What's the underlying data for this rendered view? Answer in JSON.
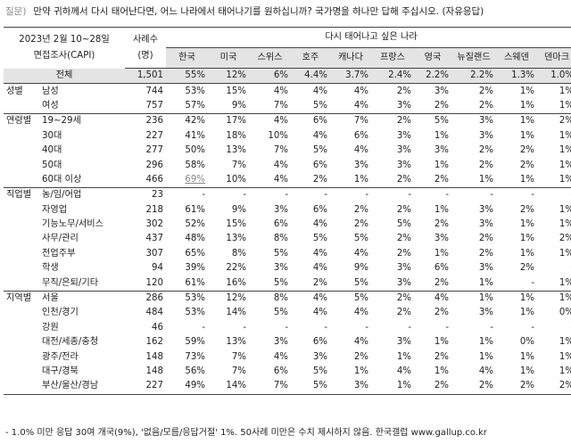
{
  "question": {
    "label": "질문)",
    "text": "만약 귀하께서 다시 태어난다면, 어느 나라에서 태어나기를 원하십니까? 국가명을 하나만 답해 주십시오. (자유응답)"
  },
  "header": {
    "survey_line1": "2023년 2월 10~28일",
    "survey_line2": "면접조사(CAPI)",
    "n_line1": "사례수",
    "n_line2": "(명)",
    "group_title": "다시 태어나고 싶은 나라",
    "countries": [
      "한국",
      "미국",
      "스위스",
      "호주",
      "캐나다",
      "프랑스",
      "영국",
      "뉴질랜드",
      "스웨덴",
      "덴마크"
    ]
  },
  "total": {
    "label": "전체",
    "n": "1,501",
    "values": [
      "55%",
      "12%",
      "6%",
      "4.4%",
      "3.7%",
      "2.4%",
      "2.2%",
      "2.2%",
      "1.3%",
      "1.0%"
    ]
  },
  "groups": [
    {
      "name": "성별",
      "rows": [
        {
          "label": "남성",
          "n": "744",
          "values": [
            "53%",
            "15%",
            "4%",
            "4%",
            "4%",
            "2%",
            "3%",
            "2%",
            "1%",
            "1%"
          ]
        },
        {
          "label": "여성",
          "n": "757",
          "values": [
            "57%",
            "9%",
            "7%",
            "5%",
            "4%",
            "3%",
            "2%",
            "2%",
            "1%",
            "1%"
          ]
        }
      ]
    },
    {
      "name": "연령별",
      "rows": [
        {
          "label": "19~29세",
          "n": "236",
          "values": [
            "42%",
            "17%",
            "4%",
            "6%",
            "7%",
            "2%",
            "5%",
            "3%",
            "1%",
            "2%"
          ]
        },
        {
          "label": "30대",
          "n": "227",
          "values": [
            "41%",
            "18%",
            "10%",
            "4%",
            "6%",
            "3%",
            "1%",
            "3%",
            "1%",
            "1%"
          ]
        },
        {
          "label": "40대",
          "n": "277",
          "values": [
            "50%",
            "13%",
            "7%",
            "5%",
            "4%",
            "3%",
            "3%",
            "2%",
            "2%",
            "1%"
          ]
        },
        {
          "label": "50대",
          "n": "296",
          "values": [
            "58%",
            "7%",
            "4%",
            "6%",
            "3%",
            "3%",
            "1%",
            "2%",
            "2%",
            "1%"
          ]
        },
        {
          "label": "60대 이상",
          "n": "466",
          "values": [
            "69%",
            "10%",
            "4%",
            "2%",
            "1%",
            "2%",
            "2%",
            "1%",
            "1%",
            "1%"
          ]
        }
      ]
    },
    {
      "name": "직업별",
      "rows": [
        {
          "label": "농/임/어업",
          "n": "23",
          "values": [
            "-",
            "-",
            "-",
            "-",
            "-",
            "-",
            "-",
            "-",
            "-",
            "-"
          ]
        },
        {
          "label": "자영업",
          "n": "218",
          "values": [
            "61%",
            "9%",
            "3%",
            "6%",
            "2%",
            "2%",
            "1%",
            "3%",
            "2%",
            "1%"
          ]
        },
        {
          "label": "기능노무/서비스",
          "n": "302",
          "values": [
            "52%",
            "15%",
            "6%",
            "4%",
            "2%",
            "5%",
            "2%",
            "3%",
            "1%",
            "1%"
          ]
        },
        {
          "label": "사무/관리",
          "n": "437",
          "values": [
            "48%",
            "13%",
            "8%",
            "5%",
            "5%",
            "2%",
            "3%",
            "2%",
            "1%",
            "2%"
          ]
        },
        {
          "label": "전업주부",
          "n": "307",
          "values": [
            "65%",
            "8%",
            "5%",
            "4%",
            "4%",
            "2%",
            "1%",
            "2%",
            "1%",
            "1%"
          ]
        },
        {
          "label": "학생",
          "n": "94",
          "values": [
            "39%",
            "22%",
            "3%",
            "4%",
            "9%",
            "3%",
            "6%",
            "3%",
            "2%",
            "-"
          ]
        },
        {
          "label": "무직/은퇴/기타",
          "n": "120",
          "values": [
            "61%",
            "16%",
            "5%",
            "2%",
            "5%",
            "3%",
            "2%",
            "1%",
            "-",
            "1%"
          ]
        }
      ]
    },
    {
      "name": "지역별",
      "rows": [
        {
          "label": "서울",
          "n": "286",
          "values": [
            "53%",
            "12%",
            "8%",
            "4%",
            "5%",
            "2%",
            "4%",
            "1%",
            "1%",
            "1%"
          ]
        },
        {
          "label": "인천/경기",
          "n": "484",
          "values": [
            "53%",
            "14%",
            "5%",
            "4%",
            "4%",
            "2%",
            "2%",
            "3%",
            "1%",
            "0%"
          ]
        },
        {
          "label": "강원",
          "n": "46",
          "values": [
            "-",
            "-",
            "-",
            "-",
            "-",
            "-",
            "-",
            "-",
            "-",
            "-"
          ]
        },
        {
          "label": "대전/세종/충청",
          "n": "162",
          "values": [
            "59%",
            "13%",
            "3%",
            "6%",
            "4%",
            "3%",
            "1%",
            "1%",
            "0%",
            "1%"
          ]
        },
        {
          "label": "광주/전라",
          "n": "148",
          "values": [
            "73%",
            "7%",
            "4%",
            "3%",
            "2%",
            "1%",
            "2%",
            "1%",
            "1%",
            "1%"
          ]
        },
        {
          "label": "대구/경북",
          "n": "148",
          "values": [
            "56%",
            "7%",
            "6%",
            "5%",
            "1%",
            "4%",
            "1%",
            "4%",
            "1%",
            "1%"
          ]
        },
        {
          "label": "부산/울산/경남",
          "n": "227",
          "values": [
            "49%",
            "14%",
            "7%",
            "5%",
            "3%",
            "1%",
            "2%",
            "2%",
            "2%",
            "2%"
          ]
        }
      ]
    }
  ],
  "footnote": "- 1.0% 미만 응답 30여 개국(9%), '없음/모름/응답거절' 1%. 50사례 미만은 수치 제시하지 않음. 한국갤럽 www.gallup.co.kr"
}
